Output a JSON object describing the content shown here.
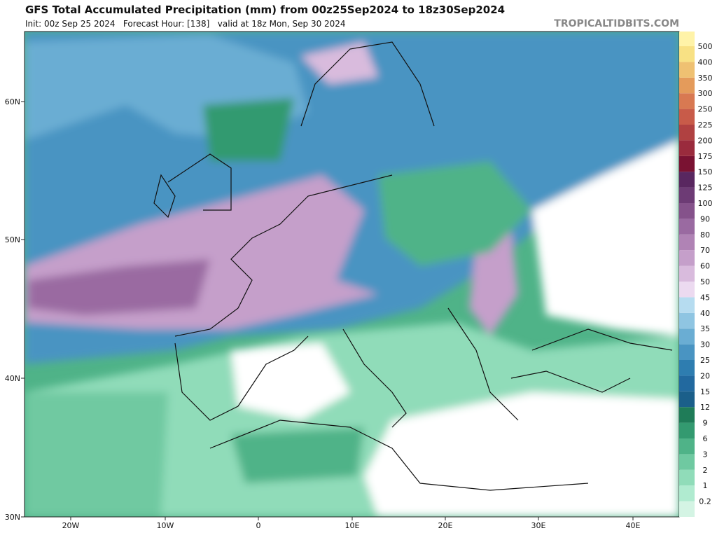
{
  "header": {
    "title": "GFS Total Accumulated Precipitation (mm) from 00z25Sep2024 to 18z30Sep2024",
    "subtitle": "Init: 00z Sep 25 2024   Forecast Hour: [138]   valid at 18z Mon, Sep 30 2024",
    "brand": "TROPICALTIDBITS.COM"
  },
  "map": {
    "lon_labels": [
      "20W",
      "10W",
      "0",
      "10E",
      "20E",
      "30E",
      "40E"
    ],
    "lat_labels": [
      "60N",
      "50N",
      "40N",
      "30N"
    ]
  },
  "colorbar": {
    "levels": [
      {
        "label": "0.2",
        "color": "#d4f4e4"
      },
      {
        "label": "1",
        "color": "#b0ebd0"
      },
      {
        "label": "2",
        "color": "#90dcb9"
      },
      {
        "label": "3",
        "color": "#6fc9a1"
      },
      {
        "label": "6",
        "color": "#4fb388"
      },
      {
        "label": "9",
        "color": "#339a70"
      },
      {
        "label": "12",
        "color": "#1f7c58"
      },
      {
        "label": "15",
        "color": "#1b5f8a"
      },
      {
        "label": "20",
        "color": "#22699f"
      },
      {
        "label": "25",
        "color": "#2e7db0"
      },
      {
        "label": "30",
        "color": "#4994c2"
      },
      {
        "label": "35",
        "color": "#6aadd3"
      },
      {
        "label": "40",
        "color": "#8fc5e2"
      },
      {
        "label": "45",
        "color": "#b6dcf0"
      },
      {
        "label": "50",
        "color": "#ecdaf0"
      },
      {
        "label": "60",
        "color": "#d9bbdd"
      },
      {
        "label": "70",
        "color": "#c59fca"
      },
      {
        "label": "80",
        "color": "#b083b5"
      },
      {
        "label": "90",
        "color": "#9a6aa1"
      },
      {
        "label": "100",
        "color": "#85528b"
      },
      {
        "label": "125",
        "color": "#6d3b75"
      },
      {
        "label": "150",
        "color": "#592760"
      },
      {
        "label": "175",
        "color": "#7a1232"
      },
      {
        "label": "200",
        "color": "#9a2b3d"
      },
      {
        "label": "225",
        "color": "#b04141"
      },
      {
        "label": "250",
        "color": "#c85b49"
      },
      {
        "label": "300",
        "color": "#d87952"
      },
      {
        "label": "350",
        "color": "#e49b5b"
      },
      {
        "label": "400",
        "color": "#efc172"
      },
      {
        "label": "500",
        "color": "#f8e184"
      }
    ]
  }
}
